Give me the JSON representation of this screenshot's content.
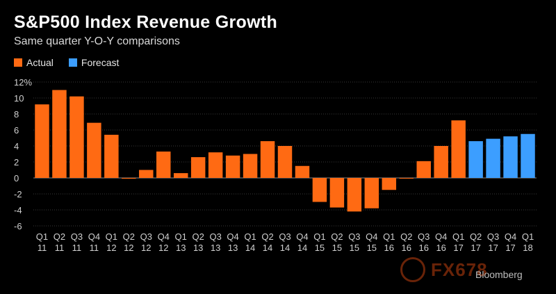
{
  "title": "S&P500 Index Revenue Growth",
  "subtitle": "Same quarter Y-O-Y comparisons",
  "legend": [
    {
      "label": "Actual",
      "color": "#ff6a13"
    },
    {
      "label": "Forecast",
      "color": "#3c9eff"
    }
  ],
  "watermark": {
    "logo_text": "FX678",
    "source": "Bloomberg"
  },
  "chart_data": {
    "type": "bar",
    "yunit": "%",
    "ylim": [
      -6,
      12
    ],
    "yticks": [
      -6,
      -4,
      -2,
      0,
      2,
      4,
      6,
      8,
      10,
      12
    ],
    "ytick_labels": [
      "-6",
      "-4",
      "-2",
      "0",
      "2",
      "4",
      "6",
      "8",
      "10",
      "12%"
    ],
    "grid": true,
    "categories": [
      {
        "q": "Q1",
        "y": "11"
      },
      {
        "q": "Q2",
        "y": "11"
      },
      {
        "q": "Q3",
        "y": "11"
      },
      {
        "q": "Q4",
        "y": "11"
      },
      {
        "q": "Q1",
        "y": "12"
      },
      {
        "q": "Q2",
        "y": "12"
      },
      {
        "q": "Q3",
        "y": "12"
      },
      {
        "q": "Q4",
        "y": "12"
      },
      {
        "q": "Q1",
        "y": "13"
      },
      {
        "q": "Q2",
        "y": "13"
      },
      {
        "q": "Q3",
        "y": "13"
      },
      {
        "q": "Q4",
        "y": "13"
      },
      {
        "q": "Q1",
        "y": "14"
      },
      {
        "q": "Q2",
        "y": "14"
      },
      {
        "q": "Q3",
        "y": "14"
      },
      {
        "q": "Q4",
        "y": "14"
      },
      {
        "q": "Q1",
        "y": "15"
      },
      {
        "q": "Q2",
        "y": "15"
      },
      {
        "q": "Q3",
        "y": "15"
      },
      {
        "q": "Q4",
        "y": "15"
      },
      {
        "q": "Q1",
        "y": "16"
      },
      {
        "q": "Q2",
        "y": "16"
      },
      {
        "q": "Q3",
        "y": "16"
      },
      {
        "q": "Q4",
        "y": "16"
      },
      {
        "q": "Q1",
        "y": "17"
      },
      {
        "q": "Q2",
        "y": "17"
      },
      {
        "q": "Q3",
        "y": "17"
      },
      {
        "q": "Q4",
        "y": "17"
      },
      {
        "q": "Q1",
        "y": "18"
      }
    ],
    "series": [
      {
        "name": "Actual",
        "color": "#ff6a13",
        "values": [
          9.2,
          11.0,
          10.2,
          6.9,
          5.4,
          -0.1,
          1.0,
          3.3,
          0.6,
          2.6,
          3.2,
          2.8,
          3.0,
          4.6,
          4.0,
          1.5,
          -3.0,
          -3.7,
          -4.2,
          -3.8,
          -1.5,
          0.0,
          2.1,
          4.0,
          7.2,
          null,
          null,
          null,
          null
        ]
      },
      {
        "name": "Forecast",
        "color": "#3c9eff",
        "values": [
          null,
          null,
          null,
          null,
          null,
          null,
          null,
          null,
          null,
          null,
          null,
          null,
          null,
          null,
          null,
          null,
          null,
          null,
          null,
          null,
          null,
          null,
          null,
          null,
          null,
          4.6,
          4.9,
          5.2,
          5.5
        ]
      }
    ]
  }
}
